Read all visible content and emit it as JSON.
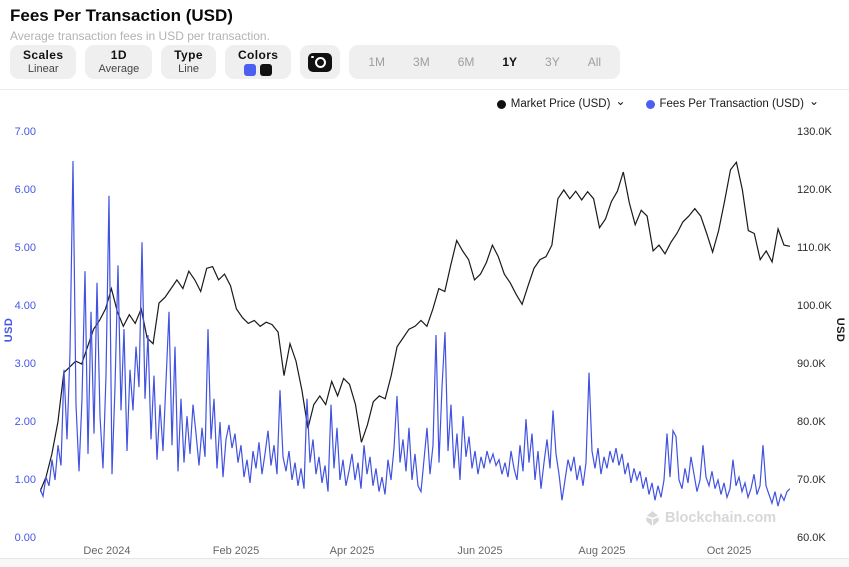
{
  "header": {
    "title": "Fees Per Transaction (USD)",
    "subtitle": "Average transaction fees in USD per transaction."
  },
  "toolbar": {
    "scales": {
      "label": "Scales",
      "value": "Linear"
    },
    "frequency": {
      "label": "1D",
      "value": "Average"
    },
    "type": {
      "label": "Type",
      "value": "Line"
    },
    "colors": {
      "label": "Colors",
      "swatches": [
        "#4c5ff0",
        "#111111"
      ]
    },
    "camera_icon": "camera-icon",
    "ranges": [
      {
        "label": "1M",
        "active": false
      },
      {
        "label": "3M",
        "active": false
      },
      {
        "label": "6M",
        "active": false
      },
      {
        "label": "1Y",
        "active": true
      },
      {
        "label": "3Y",
        "active": false
      },
      {
        "label": "All",
        "active": false
      }
    ]
  },
  "legend": [
    {
      "label": "Market Price (USD)",
      "color": "#111111"
    },
    {
      "label": "Fees Per Transaction (USD)",
      "color": "#4c5ff0"
    }
  ],
  "watermark": "Blockchain.com",
  "colors": {
    "accent_blue": "#4152e0",
    "series_black": "#1a1a1a",
    "axis_blue_label": "#4556e8",
    "watermark_gray": "#d7d7d7"
  },
  "chart_data": {
    "type": "line",
    "title": "Fees Per Transaction (USD)",
    "grid": false,
    "legend_position": "top-right",
    "x_range": [
      "Nov 2024",
      "Nov 2025"
    ],
    "x_ticks": [
      {
        "label": "Dec 2024",
        "pos": 0.0893
      },
      {
        "label": "Feb 2025",
        "pos": 0.2613
      },
      {
        "label": "Apr 2025",
        "pos": 0.416
      },
      {
        "label": "Jun 2025",
        "pos": 0.5867
      },
      {
        "label": "Aug 2025",
        "pos": 0.7493
      },
      {
        "label": "Oct 2025",
        "pos": 0.9187
      }
    ],
    "left_axis": {
      "title": "USD",
      "min": 0,
      "max": 7,
      "tick_labels": [
        "7.00",
        "6.00",
        "5.00",
        "4.00",
        "3.00",
        "2.00",
        "1.00",
        "0.00"
      ]
    },
    "right_axis": {
      "title": "USD",
      "min": 60000,
      "max": 130000,
      "tick_labels": [
        "130.0K",
        "120.0K",
        "110.0K",
        "100.0K",
        "90.0K",
        "80.0K",
        "70.0K",
        "60.0K"
      ]
    },
    "series": [
      {
        "name": "Market Price (USD)",
        "axis": "right",
        "color": "#1a1a1a",
        "values_unit": "USD thousands",
        "values": [
          68,
          70.5,
          74.5,
          80,
          88.5,
          89.5,
          90.5,
          90,
          93,
          96,
          97.5,
          99.5,
          103,
          99,
          96.5,
          98.5,
          97,
          99.5,
          94.5,
          93.5,
          100.5,
          101.5,
          103,
          104.5,
          103,
          106,
          104.5,
          102.5,
          106.5,
          106.8,
          104.5,
          105.5,
          103.5,
          99.5,
          98,
          97,
          97.5,
          96.5,
          97.2,
          96.8,
          95.5,
          88,
          93.5,
          90.5,
          85.5,
          78.9,
          83,
          84.5,
          83,
          87,
          84.5,
          87.5,
          86.5,
          83,
          76.5,
          79.5,
          83.5,
          84.5,
          84,
          88,
          93,
          94.5,
          96,
          96.5,
          97.5,
          96.5,
          99.5,
          103,
          102.5,
          107,
          111.3,
          109.5,
          108,
          104.5,
          105.5,
          107.5,
          110.5,
          108.5,
          105.5,
          104,
          102,
          100.3,
          103.5,
          106.5,
          108,
          108.5,
          110.5,
          118.5,
          120,
          118.5,
          119.8,
          118.3,
          119.7,
          118.5,
          113.5,
          115,
          118,
          119.8,
          123.1,
          117.8,
          114,
          116.5,
          115.5,
          109.5,
          110.5,
          109,
          111,
          112.5,
          114.5,
          115.5,
          116.8,
          115.5,
          112.5,
          109.3,
          113,
          118,
          123.5,
          124.8,
          120,
          113,
          112.5,
          108,
          109.5,
          107.6,
          113.3,
          110.5,
          110.3
        ]
      },
      {
        "name": "Fees Per Transaction (USD)",
        "axis": "left",
        "color": "#4152e0",
        "values_unit": "USD",
        "values": [
          0.85,
          0.72,
          1.05,
          0.9,
          1.35,
          1.0,
          1.6,
          1.25,
          2.9,
          1.7,
          3.2,
          6.5,
          2.3,
          1.15,
          2.4,
          4.6,
          1.45,
          3.9,
          1.8,
          4.4,
          2.1,
          1.2,
          2.8,
          5.9,
          1.1,
          2.6,
          4.7,
          2.2,
          3.6,
          1.5,
          2.9,
          2.2,
          3.3,
          2.6,
          5.1,
          2.4,
          3.5,
          1.7,
          2.8,
          1.35,
          2.3,
          1.5,
          2.7,
          3.9,
          1.6,
          3.3,
          1.15,
          2.4,
          1.3,
          2.1,
          1.45,
          2.3,
          1.8,
          1.25,
          1.9,
          1.4,
          3.6,
          1.7,
          2.4,
          1.2,
          2.0,
          1.05,
          1.7,
          1.95,
          1.55,
          1.8,
          1.3,
          1.6,
          1.05,
          1.35,
          0.95,
          1.5,
          1.2,
          1.65,
          1.1,
          1.45,
          1.85,
          1.25,
          1.6,
          1.1,
          2.55,
          1.4,
          1.15,
          1.5,
          1.0,
          1.3,
          0.9,
          1.2,
          0.85,
          2.4,
          1.3,
          1.7,
          1.1,
          1.4,
          0.95,
          1.25,
          0.8,
          2.3,
          1.2,
          1.9,
          1.0,
          1.35,
          0.9,
          1.15,
          1.45,
          1.0,
          1.3,
          0.85,
          1.6,
          1.1,
          1.4,
          0.9,
          1.2,
          0.8,
          1.05,
          0.75,
          1.35,
          1.0,
          1.55,
          2.45,
          1.3,
          1.7,
          1.15,
          1.9,
          1.0,
          1.45,
          0.9,
          0.8,
          1.35,
          1.9,
          1.1,
          1.6,
          3.5,
          1.3,
          2.6,
          3.55,
          1.5,
          2.3,
          1.2,
          1.8,
          1.0,
          2.1,
          1.4,
          1.75,
          1.2,
          1.5,
          1.1,
          1.4,
          1.2,
          1.5,
          1.3,
          1.45,
          1.25,
          1.35,
          1.1,
          1.3,
          1.05,
          1.5,
          1.2,
          1.0,
          1.6,
          1.15,
          2.05,
          1.3,
          1.8,
          1.0,
          1.5,
          0.85,
          1.3,
          1.7,
          1.2,
          2.2,
          1.45,
          1.1,
          0.65,
          1.0,
          1.35,
          1.15,
          1.4,
          1.0,
          1.25,
          0.9,
          1.3,
          2.85,
          1.5,
          1.2,
          1.55,
          1.1,
          1.4,
          1.2,
          1.5,
          1.3,
          1.55,
          1.25,
          1.45,
          1.1,
          1.3,
          0.95,
          1.2,
          1.0,
          1.15,
          0.85,
          1.05,
          0.75,
          0.95,
          0.65,
          0.9,
          0.7,
          1.0,
          1.8,
          1.05,
          1.85,
          1.75,
          1.0,
          0.85,
          1.2,
          0.95,
          1.4,
          1.1,
          0.8,
          1.0,
          1.6,
          1.05,
          0.9,
          1.15,
          0.85,
          1.0,
          0.75,
          0.95,
          0.7,
          0.85,
          1.35,
          0.9,
          1.05,
          0.8,
          0.95,
          0.7,
          0.85,
          1.1,
          0.75,
          0.9,
          1.6,
          0.9,
          0.75,
          0.6,
          0.8,
          0.55,
          0.75,
          0.65,
          0.8,
          0.85
        ]
      }
    ]
  }
}
